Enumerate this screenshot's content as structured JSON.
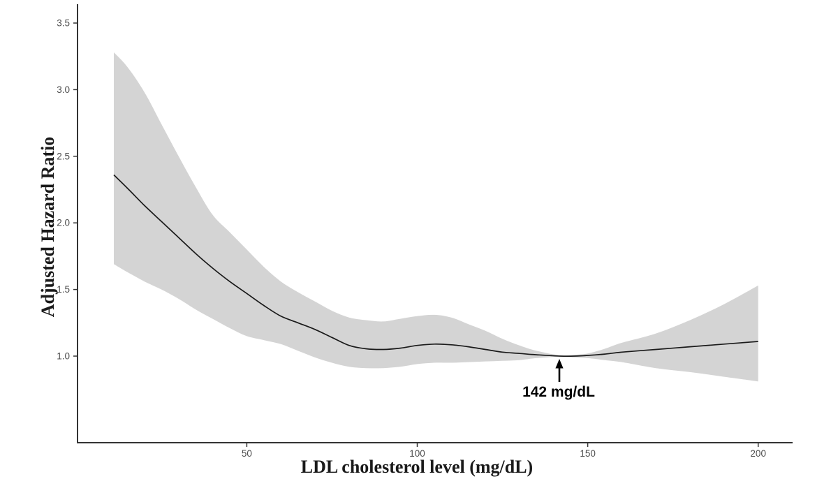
{
  "chart_data": {
    "type": "line",
    "title": "",
    "xlabel": "LDL cholesterol level (mg/dL)",
    "ylabel": "Adjusted Hazard Ratio",
    "x_ticks": [
      50,
      100,
      150,
      200
    ],
    "y_ticks": [
      1.0,
      1.5,
      2.0,
      2.5,
      3.0,
      3.5
    ],
    "xlim": [
      0,
      210
    ],
    "ylim": [
      0.35,
      3.65
    ],
    "grid": false,
    "legend": false,
    "x": [
      11,
      15,
      20,
      25,
      30,
      35,
      40,
      45,
      50,
      55,
      60,
      65,
      70,
      75,
      80,
      85,
      90,
      95,
      100,
      105,
      110,
      115,
      120,
      125,
      130,
      135,
      142,
      146,
      150,
      155,
      160,
      170,
      180,
      190,
      200
    ],
    "series": [
      {
        "name": "adjusted-hazard-ratio",
        "values": [
          2.36,
          2.26,
          2.13,
          2.01,
          1.89,
          1.77,
          1.66,
          1.56,
          1.47,
          1.38,
          1.3,
          1.25,
          1.2,
          1.14,
          1.08,
          1.055,
          1.05,
          1.06,
          1.08,
          1.09,
          1.085,
          1.07,
          1.05,
          1.03,
          1.02,
          1.01,
          1.0,
          1.0,
          1.005,
          1.015,
          1.03,
          1.05,
          1.07,
          1.09,
          1.11
        ]
      },
      {
        "name": "ci-upper",
        "values": [
          3.28,
          3.17,
          2.98,
          2.74,
          2.5,
          2.27,
          2.06,
          1.93,
          1.8,
          1.67,
          1.56,
          1.48,
          1.41,
          1.34,
          1.29,
          1.27,
          1.26,
          1.28,
          1.3,
          1.31,
          1.29,
          1.24,
          1.19,
          1.13,
          1.08,
          1.04,
          1.005,
          1.01,
          1.02,
          1.055,
          1.1,
          1.17,
          1.27,
          1.39,
          1.53
        ]
      },
      {
        "name": "ci-lower",
        "values": [
          1.69,
          1.63,
          1.56,
          1.5,
          1.43,
          1.35,
          1.28,
          1.21,
          1.15,
          1.12,
          1.09,
          1.04,
          0.99,
          0.95,
          0.92,
          0.91,
          0.91,
          0.92,
          0.94,
          0.95,
          0.95,
          0.955,
          0.96,
          0.965,
          0.97,
          0.985,
          0.995,
          0.99,
          0.985,
          0.97,
          0.955,
          0.91,
          0.88,
          0.845,
          0.81
        ]
      }
    ],
    "annotation": {
      "label": "142 mg/dL",
      "x": 142,
      "y": 1.0
    },
    "colors": {
      "band": "#d4d4d4",
      "line": "#1a1a1a",
      "axis": "#333333",
      "tick_label": "#4d4d4d",
      "background": "#ffffff"
    }
  }
}
